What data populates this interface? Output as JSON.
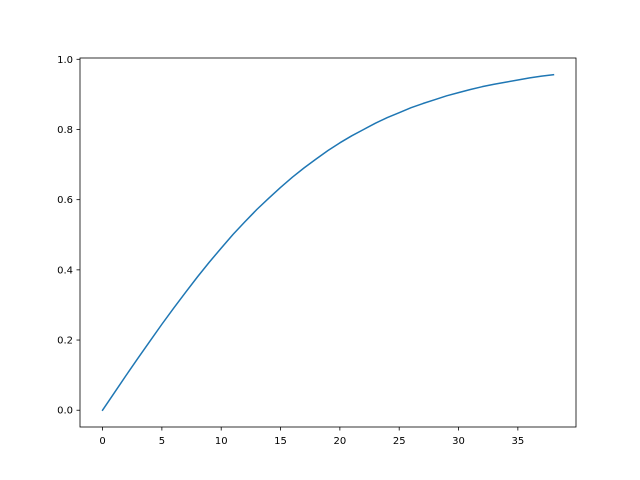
{
  "chart_data": {
    "type": "line",
    "title": "",
    "xlabel": "",
    "ylabel": "",
    "xlim": [
      -1.9,
      39.9
    ],
    "ylim": [
      -0.0478,
      1.0037
    ],
    "grid": false,
    "x_ticks": [
      0,
      5,
      10,
      15,
      20,
      25,
      30,
      35
    ],
    "x_tick_labels": [
      "0",
      "5",
      "10",
      "15",
      "20",
      "25",
      "30",
      "35"
    ],
    "y_ticks": [
      0.0,
      0.2,
      0.4,
      0.6,
      0.8,
      1.0
    ],
    "y_tick_labels": [
      "0.0",
      "0.2",
      "0.4",
      "0.6",
      "0.8",
      "1.0"
    ],
    "series": [
      {
        "color": "#1f77b4",
        "x": [
          0,
          1,
          2,
          3,
          4,
          5,
          6,
          7,
          8,
          9,
          10,
          11,
          12,
          13,
          14,
          15,
          16,
          17,
          18,
          19,
          20,
          21,
          22,
          23,
          24,
          25,
          26,
          27,
          28,
          29,
          30,
          31,
          32,
          33,
          34,
          35,
          36,
          37,
          38
        ],
        "y": [
          0,
          0.05,
          0.1,
          0.149,
          0.197,
          0.245,
          0.291,
          0.336,
          0.38,
          0.422,
          0.462,
          0.501,
          0.537,
          0.572,
          0.604,
          0.635,
          0.664,
          0.691,
          0.716,
          0.74,
          0.762,
          0.782,
          0.8,
          0.818,
          0.834,
          0.848,
          0.862,
          0.874,
          0.885,
          0.896,
          0.905,
          0.914,
          0.922,
          0.929,
          0.935,
          0.941,
          0.947,
          0.952,
          0.956
        ]
      }
    ]
  }
}
